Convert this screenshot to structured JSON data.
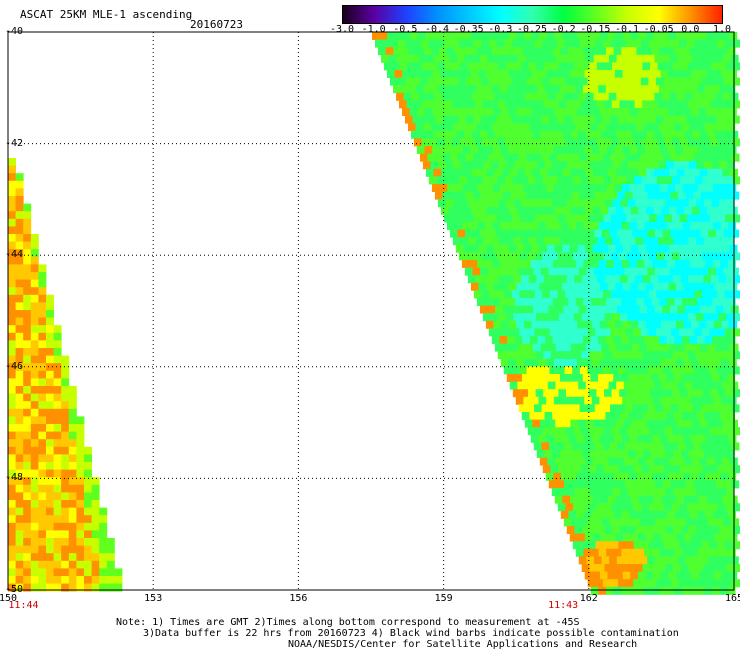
{
  "title": "ASCAT 25KM MLE-1 ascending",
  "date": "20160723",
  "colorbar": {
    "labels": [
      "-3.0",
      "-1.0",
      "-0.5",
      "-0.4",
      "-0.35",
      "-0.3",
      "-0.25",
      "-0.2",
      "-0.15",
      "-0.1",
      "-0.05",
      "0.0",
      "1.0"
    ],
    "colors": [
      "#1a001a",
      "#5a00a0",
      "#2040ff",
      "#0090ff",
      "#00c8ff",
      "#00ffff",
      "#30ffb0",
      "#00ff40",
      "#60ff20",
      "#c8ff00",
      "#ffff00",
      "#ff9000",
      "#ff2000"
    ]
  },
  "map": {
    "lat_labels": [
      "-40",
      "-42",
      "-44",
      "-46",
      "-48",
      "-50"
    ],
    "lon_labels": [
      "150",
      "153",
      "156",
      "159",
      "162",
      "165"
    ],
    "lat_range": [
      -50,
      -40
    ],
    "lon_range": [
      150,
      165
    ],
    "time_labels": [
      {
        "text": "11:44",
        "lon": 150.05
      },
      {
        "text": "11:43",
        "lon": 161.2
      }
    ]
  },
  "notes": [
    "Note: 1) Times are GMT 2)Times along bottom correspond to measurement at -45S",
    "3)Data buffer is 22 hrs from 20160723 4) Black wind barbs indicate possible contamination",
    "NOAA/NESDIS/Center for Satellite Applications and Research"
  ]
}
